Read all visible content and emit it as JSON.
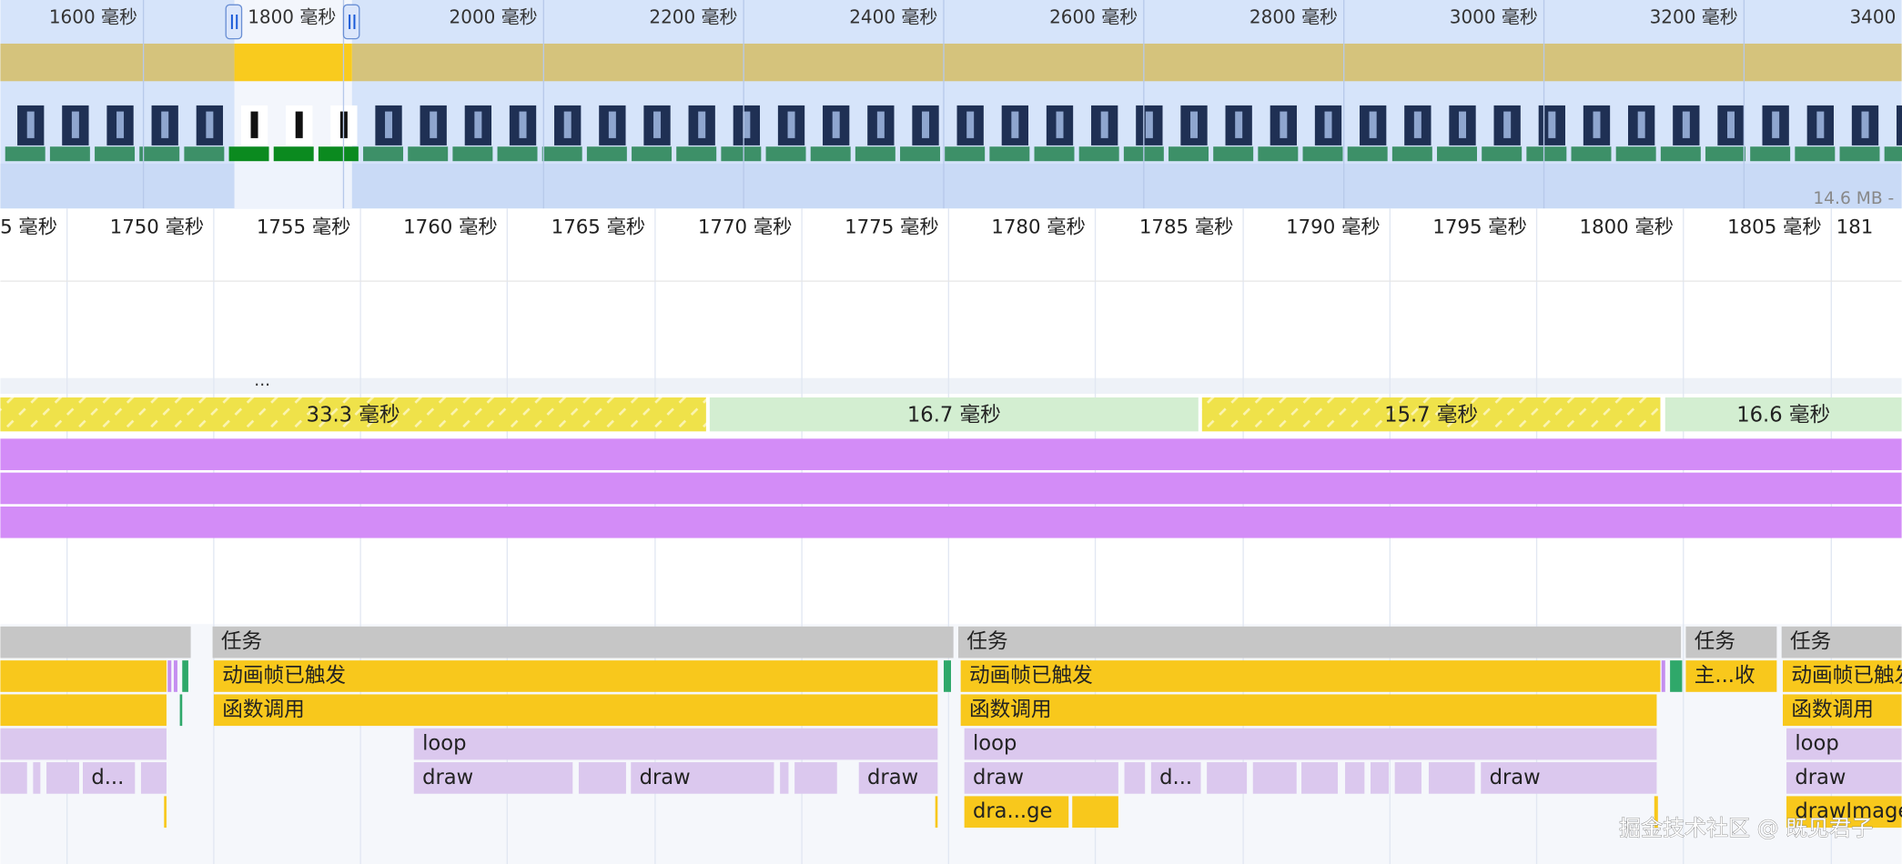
{
  "overview": {
    "ticks": [
      "1600 毫秒",
      "1800 毫秒",
      "2000 毫秒",
      "2200 毫秒",
      "2400 毫秒",
      "2600 毫秒",
      "2800 毫秒",
      "3000 毫秒",
      "3200 毫秒",
      "3400 毫秒"
    ],
    "memory_label": "14.6 MB -"
  },
  "timeline": {
    "ticks": [
      "5 毫秒",
      "1750 毫秒",
      "1755 毫秒",
      "1760 毫秒",
      "1765 毫秒",
      "1770 毫秒",
      "1775 毫秒",
      "1780 毫秒",
      "1785 毫秒",
      "1790 毫秒",
      "1795 毫秒",
      "1800 毫秒",
      "1805 毫秒",
      "181"
    ]
  },
  "ellipsis": "...",
  "frames": [
    "33.3 毫秒",
    "16.7 毫秒",
    "15.7 毫秒",
    "16.6 毫秒"
  ],
  "flame": {
    "tasks": [
      "任务",
      "任务",
      "任务",
      "任务"
    ],
    "row1": [
      "动画帧已触发",
      "动画帧已触发",
      "主...收",
      "动画帧已触发"
    ],
    "row2": [
      "函数调用",
      "函数调用",
      "函数调用"
    ],
    "row3": [
      "loop",
      "loop",
      "loop"
    ],
    "row4": [
      "d...",
      "draw",
      "draw",
      "draw",
      "draw",
      "d...",
      "draw",
      "draw"
    ],
    "row5": [
      "dra...ge",
      "drawImage"
    ]
  },
  "watermark": "掘金技术社区 @ 既见君子"
}
